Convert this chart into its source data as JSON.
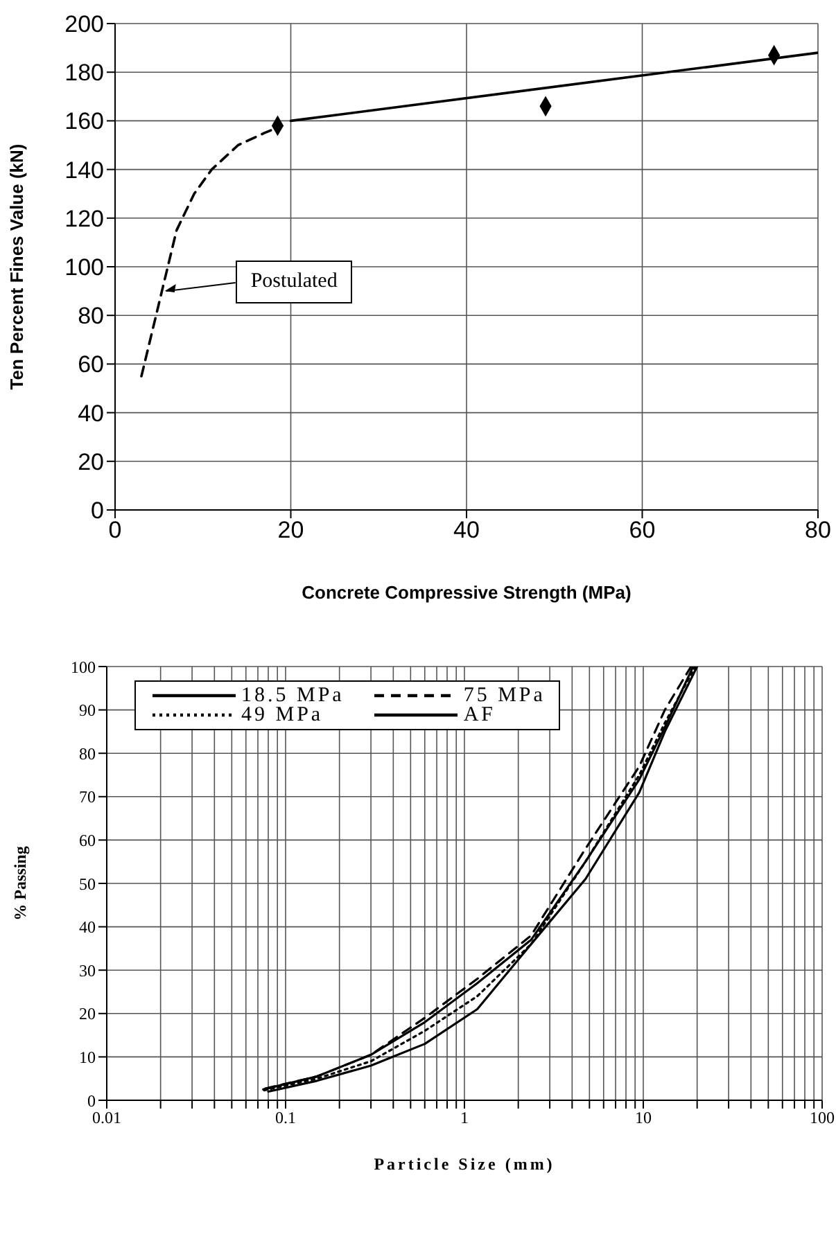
{
  "chart_data": [
    {
      "type": "line",
      "xlabel": "Concrete Compressive Strength (MPa)",
      "ylabel": "Ten Percent Fines Value (kN)",
      "xlim": [
        0,
        80
      ],
      "xticks": [
        0,
        20,
        40,
        60,
        80
      ],
      "ylim": [
        0,
        200
      ],
      "yticks": [
        0,
        20,
        40,
        60,
        80,
        100,
        120,
        140,
        160,
        180,
        200
      ],
      "grid": true,
      "series": [
        {
          "type": "scatter",
          "marker": "diamond",
          "color": "#000000",
          "x": [
            18.5,
            49,
            75
          ],
          "values": [
            158,
            166,
            187
          ]
        },
        {
          "line_style": "solid",
          "color": "#000000",
          "x": [
            20,
            80
          ],
          "values": [
            160,
            188
          ]
        },
        {
          "line_style": "dashed",
          "color": "#000000",
          "x": [
            3,
            5,
            6,
            7,
            9,
            11,
            14,
            17,
            19
          ],
          "values": [
            55,
            85,
            100,
            115,
            130,
            140,
            150,
            155,
            158
          ]
        }
      ],
      "annotations": [
        "Postulated"
      ]
    },
    {
      "type": "line",
      "log": "x",
      "xlabel": "Particle Size (mm)",
      "ylabel": "% Passing",
      "xlim": [
        0.01,
        100
      ],
      "xticks": [
        0.01,
        {
          "value": 0.02,
          "label": null
        },
        {
          "value": 0.03,
          "label": null
        },
        {
          "value": 0.04,
          "label": null
        },
        {
          "value": 0.05,
          "label": null
        },
        {
          "value": 0.06,
          "label": null
        },
        {
          "value": 0.07,
          "label": null
        },
        {
          "value": 0.08,
          "label": null
        },
        {
          "value": 0.09,
          "label": null
        },
        0.1,
        {
          "value": 0.2,
          "label": null
        },
        {
          "value": 0.3,
          "label": null
        },
        {
          "value": 0.4,
          "label": null
        },
        {
          "value": 0.5,
          "label": null
        },
        {
          "value": 0.6,
          "label": null
        },
        {
          "value": 0.7,
          "label": null
        },
        {
          "value": 0.8,
          "label": null
        },
        {
          "value": 0.9,
          "label": null
        },
        1,
        {
          "value": 2,
          "label": null
        },
        {
          "value": 3,
          "label": null
        },
        {
          "value": 4,
          "label": null
        },
        {
          "value": 5,
          "label": null
        },
        {
          "value": 6,
          "label": null
        },
        {
          "value": 7,
          "label": null
        },
        {
          "value": 8,
          "label": null
        },
        {
          "value": 9,
          "label": null
        },
        10,
        {
          "value": 20,
          "label": null
        },
        {
          "value": 30,
          "label": null
        },
        {
          "value": 40,
          "label": null
        },
        {
          "value": 50,
          "label": null
        },
        {
          "value": 60,
          "label": null
        },
        {
          "value": 70,
          "label": null
        },
        {
          "value": 80,
          "label": null
        },
        {
          "value": 90,
          "label": null
        },
        100
      ],
      "ylim": [
        0,
        100
      ],
      "yticks": [
        0,
        10,
        20,
        30,
        40,
        50,
        60,
        70,
        80,
        90,
        100
      ],
      "grid": true,
      "legend": "top left",
      "series": [
        {
          "name": "18.5 MPa",
          "line_style": "solid",
          "color": "#000000",
          "x": [
            0.075,
            0.15,
            0.3,
            0.6,
            1.18,
            2.36,
            4.75,
            9.5,
            13.2,
            19
          ],
          "values": [
            2.5,
            5.5,
            10.5,
            18,
            27,
            37,
            55,
            74,
            86,
            100
          ]
        },
        {
          "name": "75 MPa",
          "line_style": "dashed",
          "color": "#000000",
          "x": [
            0.077,
            0.15,
            0.3,
            0.6,
            1.18,
            2.36,
            4.75,
            9.5,
            13.2,
            18.5
          ],
          "values": [
            2.7,
            5.5,
            10.5,
            19,
            28,
            38,
            58,
            77,
            90,
            100
          ]
        },
        {
          "name": "49 MPa",
          "line_style": "dotted",
          "color": "#000000",
          "x": [
            0.076,
            0.15,
            0.3,
            0.6,
            1.18,
            2.36,
            4.75,
            9.5,
            13.2,
            19.5
          ],
          "values": [
            2.3,
            5,
            9,
            16,
            24,
            36,
            55,
            75,
            87,
            100
          ]
        },
        {
          "name": "AF",
          "line_style": "solid",
          "color": "#000000",
          "x": [
            0.08,
            0.15,
            0.3,
            0.6,
            1.18,
            2.36,
            4.75,
            9.5,
            13.2,
            20
          ],
          "values": [
            2,
            4.5,
            8,
            13,
            21,
            36,
            51,
            71,
            85,
            100
          ]
        }
      ]
    }
  ]
}
